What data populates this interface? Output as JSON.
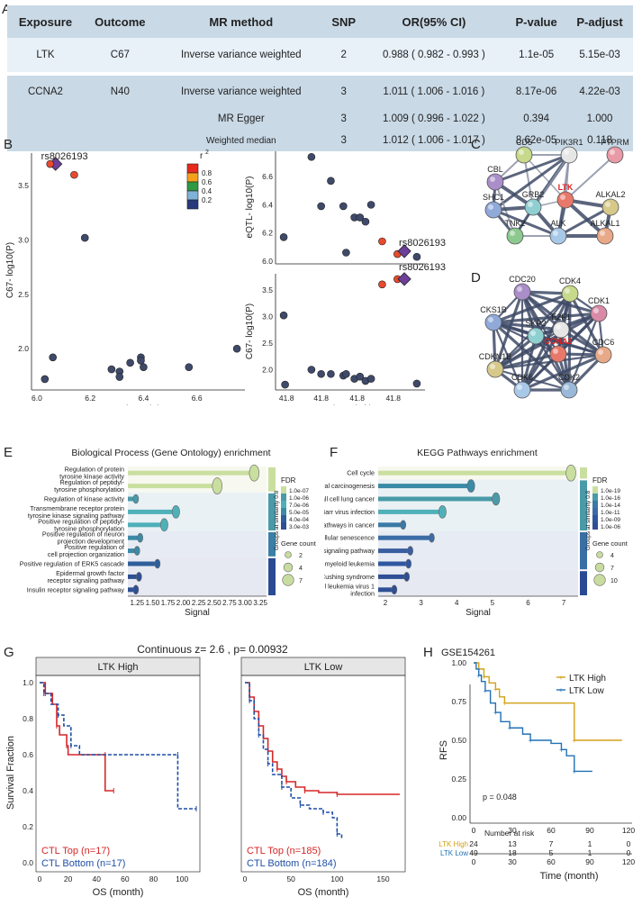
{
  "panel_labels": {
    "a": "A",
    "b": "B",
    "c": "C",
    "d": "D",
    "e": "E",
    "f": "F",
    "g": "G",
    "h": "H"
  },
  "table_a": {
    "headers": [
      "Exposure",
      "Outcome",
      "MR method",
      "SNP",
      "OR(95% CI)",
      "P-value",
      "P-adjust"
    ],
    "rows": [
      [
        "LTK",
        "C67",
        "Inverse variance weighted",
        "2",
        "0.988 ( 0.982 - 0.993 )",
        "1.1e-05",
        "5.15e-03"
      ],
      [
        "CCNA2",
        "N40",
        "Inverse variance weighted",
        "3",
        "1.011 ( 1.006 - 1.016 )",
        "8.17e-06",
        "4.22e-03"
      ],
      [
        "",
        "",
        "MR Egger",
        "3",
        "1.009 ( 0.996 - 1.022 )",
        "0.394",
        "1.000"
      ],
      [
        "",
        "",
        "Weighted median",
        "3",
        "1.012 ( 1.006 - 1.017 )",
        "8.62e-05",
        "0.118"
      ]
    ]
  },
  "panel_b": {
    "snp_label": "rs8026193",
    "legend_title": "r",
    "legend_sup": "2",
    "legend_ticks": [
      "0.8",
      "0.6",
      "0.4",
      "0.2"
    ],
    "legend_colors": [
      "#e8291c",
      "#f5a11b",
      "#2f9a43",
      "#7fb2d8",
      "#263a7c"
    ],
    "left_xlabel": "eQTL- log10(P)",
    "left_ylabel": "C67- log10(P)",
    "right_top_ylabel": "eQTL- log10(P)",
    "right_bottom_ylabel": "C67- log10(P)",
    "right_xlabel": "chr15 (Mb)",
    "left_xticks": [
      "6.0",
      "6.2",
      "6.4",
      "6.6"
    ],
    "left_yticks": [
      "2.0",
      "2.5",
      "3.0",
      "3.5"
    ],
    "right_top_yticks": [
      "6.0",
      "6.2",
      "6.4",
      "6.6"
    ],
    "right_bottom_yticks": [
      "2.0",
      "2.5",
      "3.0",
      "3.5"
    ],
    "right_xticks": [
      "41.8",
      "41.8",
      "41.8",
      "41.8"
    ]
  },
  "chart_data": [
    {
      "type": "scatter",
      "title": "C67 vs eQTL",
      "xlabel": "eQTL- log10(P)",
      "ylabel": "C67- log10(P)",
      "xlim": [
        5.98,
        6.78
      ],
      "ylim": [
        1.62,
        3.8
      ],
      "points": [
        {
          "x": 6.07,
          "y": 3.7,
          "r2": "lead"
        },
        {
          "x": 6.05,
          "y": 3.7,
          "r2": "high"
        },
        {
          "x": 6.14,
          "y": 3.6,
          "r2": "high"
        },
        {
          "x": 6.18,
          "y": 3.02,
          "r2": "low"
        },
        {
          "x": 6.06,
          "y": 1.92,
          "r2": "low"
        },
        {
          "x": 6.03,
          "y": 1.72,
          "r2": "low"
        },
        {
          "x": 6.28,
          "y": 1.81,
          "r2": "low"
        },
        {
          "x": 6.31,
          "y": 1.79,
          "r2": "low"
        },
        {
          "x": 6.31,
          "y": 1.74,
          "r2": "low"
        },
        {
          "x": 6.35,
          "y": 1.87,
          "r2": "low"
        },
        {
          "x": 6.39,
          "y": 1.92,
          "r2": "low"
        },
        {
          "x": 6.4,
          "y": 1.83,
          "r2": "low"
        },
        {
          "x": 6.39,
          "y": 1.89,
          "r2": "low"
        },
        {
          "x": 6.57,
          "y": 1.83,
          "r2": "low"
        },
        {
          "x": 6.75,
          "y": 2.0,
          "r2": "low"
        }
      ]
    },
    {
      "type": "scatter",
      "title": "eQTL locus",
      "ylabel": "eQTL- log10(P)",
      "ylim": [
        5.98,
        6.78
      ],
      "xlim": [
        0,
        1
      ],
      "points": [
        {
          "x": 0.02,
          "y": 6.17,
          "r2": "low"
        },
        {
          "x": 0.22,
          "y": 6.74,
          "r2": "low"
        },
        {
          "x": 0.29,
          "y": 6.39,
          "r2": "low"
        },
        {
          "x": 0.36,
          "y": 6.57,
          "r2": "low"
        },
        {
          "x": 0.45,
          "y": 6.39,
          "r2": "low"
        },
        {
          "x": 0.53,
          "y": 6.31,
          "r2": "low"
        },
        {
          "x": 0.57,
          "y": 6.31,
          "r2": "low"
        },
        {
          "x": 0.61,
          "y": 6.28,
          "r2": "low"
        },
        {
          "x": 0.47,
          "y": 6.06,
          "r2": "low"
        },
        {
          "x": 0.65,
          "y": 6.4,
          "r2": "low"
        },
        {
          "x": 0.73,
          "y": 6.14,
          "r2": "high"
        },
        {
          "x": 0.84,
          "y": 6.05,
          "r2": "high"
        },
        {
          "x": 0.89,
          "y": 6.07,
          "r2": "lead"
        },
        {
          "x": 0.98,
          "y": 6.03,
          "r2": "low"
        }
      ]
    },
    {
      "type": "scatter",
      "title": "C67 locus",
      "ylabel": "C67- log10(P)",
      "xlabel": "chr15 (Mb)",
      "ylim": [
        1.62,
        3.8
      ],
      "xlim": [
        0,
        1
      ],
      "points": [
        {
          "x": 0.02,
          "y": 3.02,
          "r2": "low"
        },
        {
          "x": 0.03,
          "y": 1.72,
          "r2": "low"
        },
        {
          "x": 0.22,
          "y": 2.0,
          "r2": "low"
        },
        {
          "x": 0.29,
          "y": 1.92,
          "r2": "low"
        },
        {
          "x": 0.36,
          "y": 1.92,
          "r2": "low"
        },
        {
          "x": 0.45,
          "y": 1.89,
          "r2": "low"
        },
        {
          "x": 0.47,
          "y": 1.92,
          "r2": "low"
        },
        {
          "x": 0.53,
          "y": 1.83,
          "r2": "low"
        },
        {
          "x": 0.57,
          "y": 1.87,
          "r2": "low"
        },
        {
          "x": 0.61,
          "y": 1.79,
          "r2": "low"
        },
        {
          "x": 0.65,
          "y": 1.83,
          "r2": "low"
        },
        {
          "x": 0.73,
          "y": 3.6,
          "r2": "high"
        },
        {
          "x": 0.84,
          "y": 3.7,
          "r2": "high"
        },
        {
          "x": 0.89,
          "y": 3.7,
          "r2": "lead"
        },
        {
          "x": 0.98,
          "y": 1.74,
          "r2": "low"
        }
      ]
    },
    {
      "type": "bar",
      "title": "Biological Process (Gene Ontology) enrichment",
      "xlabel": "Signal",
      "xlim": [
        1.1,
        3.35
      ],
      "xticks": [
        "1.25",
        "1.50",
        "1.75",
        "2.00",
        "2.25",
        "2.50",
        "2.75",
        "3.00",
        "3.25"
      ],
      "categories": [
        [
          "Regulation of protein",
          "tyrosine kinase activity"
        ],
        [
          "Regulation of peptidyl-",
          "tyrosine phosphorylation"
        ],
        [
          "Regulation of kinase activity"
        ],
        [
          "Transmembrane receptor protein",
          "tyrosine kinase signaling pathway"
        ],
        [
          "Positive regulation of peptidyl-",
          "tyrosine phosphorylation"
        ],
        [
          "Positive regulation of neuron",
          "projection development"
        ],
        [
          "Positive regulation of",
          "cell projection organization"
        ],
        [
          "Positive regulation of ERK5 cascade"
        ],
        [
          "Epidermal growth factor",
          "receptor signaling pathway"
        ],
        [
          "Insulin receptor signaling pathway"
        ]
      ],
      "values": [
        3.15,
        2.55,
        1.23,
        1.88,
        1.69,
        1.3,
        1.25,
        1.58,
        1.28,
        1.23
      ],
      "gene_count": [
        7,
        7,
        2,
        4,
        4,
        2,
        2,
        2,
        2,
        2
      ],
      "groups": [
        0,
        0,
        1,
        1,
        1,
        2,
        2,
        3,
        3,
        3
      ],
      "legend": {
        "fdr_title": "FDR",
        "fdr_ticks": [
          "1.0e-07",
          "1.0e-06",
          "7.0e-06",
          "5.0e-05",
          "4.0e-04",
          "3.0e-03"
        ],
        "group_title": "Groups at similarity 0.8",
        "size_title": "Gene count",
        "size_ticks": [
          "2",
          "4",
          "7"
        ]
      }
    },
    {
      "type": "bar",
      "title": "KEGG Pathways enrichment",
      "xlabel": "Signal",
      "xlim": [
        1.8,
        7.4
      ],
      "xticks": [
        "2",
        "3",
        "4",
        "5",
        "6",
        "7"
      ],
      "categories": [
        [
          "Cell cycle"
        ],
        [
          "Viral carcinogenesis"
        ],
        [
          "Small cell lung cancer"
        ],
        [
          "Epstein-Barr virus infection"
        ],
        [
          "Pathways in cancer"
        ],
        [
          "Cellular senescence"
        ],
        [
          "p53 signaling pathway"
        ],
        [
          "Chronic myeloid leukemia"
        ],
        [
          "Cushing syndrome"
        ],
        [
          "Human T-cell leukemia virus 1",
          "infection"
        ]
      ],
      "values": [
        7.2,
        4.4,
        5.1,
        3.6,
        2.5,
        3.3,
        2.7,
        2.65,
        2.6,
        2.25
      ],
      "gene_count": [
        10,
        7,
        7,
        7,
        4,
        4,
        4,
        4,
        4,
        4
      ],
      "groups": [
        0,
        1,
        1,
        1,
        1,
        2,
        2,
        2,
        3,
        3
      ],
      "legend": {
        "fdr_title": "FDR",
        "fdr_ticks": [
          "1.0e-19",
          "1.0e-16",
          "1.0e-14",
          "1.0e-11",
          "1.0e-09",
          "1.0e-06"
        ],
        "group_title": "Groups at similarity 0.8",
        "size_title": "Gene count",
        "size_ticks": [
          "4",
          "7",
          "10"
        ]
      }
    },
    {
      "type": "line",
      "title": "LTK High",
      "xlabel": "OS (month)",
      "ylabel": "Survival Fraction",
      "xlim": [
        0,
        110
      ],
      "ylim": [
        0,
        1.0
      ],
      "xticks": [
        "0",
        "20",
        "40",
        "60",
        "80",
        "100"
      ],
      "yticks": [
        "0.0",
        "0.2",
        "0.4",
        "0.6",
        "0.8",
        "1.0"
      ],
      "series": [
        {
          "name": "CTL Top (n=17)",
          "color": "#d62728",
          "dash": false,
          "steps": [
            [
              0,
              1.0
            ],
            [
              4,
              0.94
            ],
            [
              9,
              0.88
            ],
            [
              12,
              0.76
            ],
            [
              14,
              0.71
            ],
            [
              19,
              0.65
            ],
            [
              20,
              0.6
            ],
            [
              46,
              0.6
            ],
            [
              46,
              0.4
            ],
            [
              52,
              0.4
            ]
          ]
        },
        {
          "name": "CTL Bottom (n=17)",
          "color": "#1f4fa8",
          "dash": true,
          "steps": [
            [
              0,
              1.0
            ],
            [
              3,
              0.94
            ],
            [
              8,
              0.88
            ],
            [
              13,
              0.82
            ],
            [
              17,
              0.76
            ],
            [
              22,
              0.65
            ],
            [
              28,
              0.6
            ],
            [
              97,
              0.6
            ],
            [
              97,
              0.3
            ],
            [
              110,
              0.3
            ]
          ]
        }
      ]
    },
    {
      "type": "line",
      "title": "LTK Low",
      "xlabel": "OS (month)",
      "xlim": [
        0,
        170
      ],
      "ylim": [
        0,
        1.0
      ],
      "xticks": [
        "0",
        "50",
        "100",
        "150"
      ],
      "series": [
        {
          "name": "CTL Top (n=185)",
          "color": "#d62728",
          "dash": false,
          "steps": [
            [
              0,
              1.0
            ],
            [
              5,
              0.92
            ],
            [
              10,
              0.84
            ],
            [
              15,
              0.76
            ],
            [
              20,
              0.69
            ],
            [
              25,
              0.62
            ],
            [
              30,
              0.56
            ],
            [
              35,
              0.52
            ],
            [
              40,
              0.48
            ],
            [
              45,
              0.45
            ],
            [
              55,
              0.42
            ],
            [
              65,
              0.4
            ],
            [
              80,
              0.39
            ],
            [
              100,
              0.38
            ],
            [
              168,
              0.38
            ]
          ]
        },
        {
          "name": "CTL Bottom (n=184)",
          "color": "#1f4fa8",
          "dash": true,
          "steps": [
            [
              0,
              1.0
            ],
            [
              5,
              0.9
            ],
            [
              10,
              0.8
            ],
            [
              15,
              0.71
            ],
            [
              20,
              0.63
            ],
            [
              25,
              0.55
            ],
            [
              30,
              0.49
            ],
            [
              40,
              0.42
            ],
            [
              50,
              0.36
            ],
            [
              60,
              0.32
            ],
            [
              70,
              0.3
            ],
            [
              85,
              0.28
            ],
            [
              95,
              0.25
            ],
            [
              100,
              0.16
            ],
            [
              105,
              0.13
            ]
          ]
        }
      ]
    },
    {
      "type": "line",
      "title": "GSE154261",
      "xlabel": "Time (month)",
      "ylabel": "RFS",
      "xlim": [
        0,
        120
      ],
      "ylim": [
        0,
        1.0
      ],
      "xticks": [
        "0",
        "30",
        "60",
        "90",
        "120"
      ],
      "yticks": [
        "0.00",
        "0.25",
        "0.50",
        "0.75",
        "1.00"
      ],
      "series": [
        {
          "name": "LTK High",
          "color": "#d4a017",
          "steps": [
            [
              0,
              1.0
            ],
            [
              4,
              0.96
            ],
            [
              8,
              0.91
            ],
            [
              12,
              0.87
            ],
            [
              17,
              0.83
            ],
            [
              20,
              0.78
            ],
            [
              24,
              0.74
            ],
            [
              78,
              0.74
            ],
            [
              78,
              0.5
            ],
            [
              115,
              0.5
            ]
          ]
        },
        {
          "name": "LTK Low",
          "color": "#2171b5",
          "steps": [
            [
              0,
              1.0
            ],
            [
              2,
              0.96
            ],
            [
              4,
              0.92
            ],
            [
              6,
              0.88
            ],
            [
              9,
              0.82
            ],
            [
              13,
              0.74
            ],
            [
              17,
              0.68
            ],
            [
              21,
              0.62
            ],
            [
              28,
              0.58
            ],
            [
              38,
              0.54
            ],
            [
              44,
              0.5
            ],
            [
              60,
              0.48
            ],
            [
              68,
              0.44
            ],
            [
              72,
              0.4
            ],
            [
              78,
              0.3
            ],
            [
              92,
              0.3
            ]
          ]
        }
      ],
      "pvalue": "p = 0.048",
      "risk_title": "Number at risk",
      "risk_rows": [
        {
          "name": "LTK High",
          "values": [
            "24",
            "13",
            "7",
            "1",
            "0"
          ]
        },
        {
          "name": "LTK Low",
          "values": [
            "49",
            "18",
            "5",
            "1",
            "0"
          ]
        }
      ]
    }
  ],
  "panel_g": {
    "header": "Continuous z= 2.6 , p= 0.00932",
    "left_title": "LTK High",
    "right_title": "LTK Low",
    "left_legend": [
      "CTL Top (n=17)",
      "CTL Bottom (n=17)"
    ],
    "right_legend": [
      "CTL Top (n=185)",
      "CTL Bottom (n=184)"
    ]
  },
  "panel_c": {
    "nodes": [
      "CD5",
      "PIK3R1",
      "PTPRM",
      "CBL",
      "GRB2",
      "LTK",
      "SHC1",
      "ALKAL2",
      "TNK2",
      "ALK",
      "ALKAL1"
    ],
    "highlight": "LTK"
  },
  "panel_d": {
    "nodes": [
      "CDC20",
      "CDK4",
      "CDK1",
      "CKS1B",
      "E2F1",
      "SKP2",
      "CCNA2",
      "CDC6",
      "CDKN1B",
      "CDK6",
      "CDK2"
    ],
    "highlight": "CCNA2"
  }
}
